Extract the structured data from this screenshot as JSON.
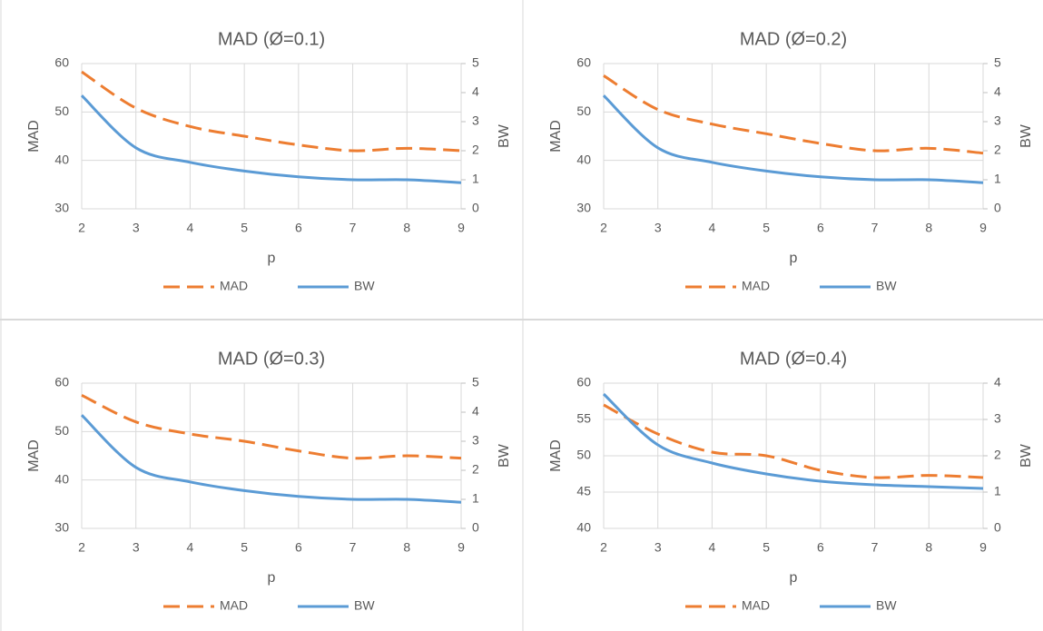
{
  "chart_data": [
    {
      "type": "line",
      "title": "MAD (Ø=0.1)",
      "xlabel": "p",
      "ylabel": "MAD",
      "y2label": "BW",
      "x": [
        2,
        3,
        4,
        5,
        6,
        7,
        8,
        9
      ],
      "xlim": [
        2,
        9
      ],
      "xticks": [
        2,
        3,
        4,
        5,
        6,
        7,
        8,
        9
      ],
      "ylim": [
        30,
        60
      ],
      "yticks": [
        30,
        40,
        50,
        60
      ],
      "y2lim": [
        0,
        5
      ],
      "y2ticks": [
        0,
        1,
        2,
        3,
        4,
        5
      ],
      "grid": true,
      "legend": "bottom",
      "series": [
        {
          "name": "MAD",
          "color": "#ed7d31",
          "dashed": true,
          "values": [
            58.3,
            50.8,
            47,
            45,
            43.2,
            42,
            42.5,
            42
          ]
        },
        {
          "name": "BW",
          "color": "#5b9bd5",
          "axis": "y2",
          "values": [
            3.9,
            2.1,
            1.6,
            1.3,
            1.1,
            1.0,
            1.0,
            0.9
          ]
        }
      ]
    },
    {
      "type": "line",
      "title": "MAD  (Ø=0.2)",
      "xlabel": "p",
      "ylabel": "MAD",
      "y2label": "BW",
      "x": [
        2,
        3,
        4,
        5,
        6,
        7,
        8,
        9
      ],
      "xlim": [
        2,
        9
      ],
      "xticks": [
        2,
        3,
        4,
        5,
        6,
        7,
        8,
        9
      ],
      "ylim": [
        30,
        60
      ],
      "yticks": [
        30,
        40,
        50,
        60
      ],
      "y2lim": [
        0,
        5
      ],
      "y2ticks": [
        0,
        1,
        2,
        3,
        4,
        5
      ],
      "grid": true,
      "legend": "bottom",
      "series": [
        {
          "name": "MAD",
          "color": "#ed7d31",
          "dashed": true,
          "values": [
            57.5,
            50.5,
            47.5,
            45.5,
            43.5,
            42,
            42.5,
            41.5
          ]
        },
        {
          "name": "BW",
          "color": "#5b9bd5",
          "axis": "y2",
          "values": [
            3.9,
            2.1,
            1.6,
            1.3,
            1.1,
            1.0,
            1.0,
            0.9
          ]
        }
      ]
    },
    {
      "type": "line",
      "title": "MAD  (Ø=0.3)",
      "xlabel": "p",
      "ylabel": "MAD",
      "y2label": "BW",
      "x": [
        2,
        3,
        4,
        5,
        6,
        7,
        8,
        9
      ],
      "xlim": [
        2,
        9
      ],
      "xticks": [
        2,
        3,
        4,
        5,
        6,
        7,
        8,
        9
      ],
      "ylim": [
        30,
        60
      ],
      "yticks": [
        30,
        40,
        50,
        60
      ],
      "y2lim": [
        0,
        5
      ],
      "y2ticks": [
        0,
        1,
        2,
        3,
        4,
        5
      ],
      "grid": true,
      "legend": "bottom",
      "series": [
        {
          "name": "MAD",
          "color": "#ed7d31",
          "dashed": true,
          "values": [
            57.5,
            52,
            49.5,
            48,
            46,
            44.5,
            45,
            44.5
          ]
        },
        {
          "name": "BW",
          "color": "#5b9bd5",
          "axis": "y2",
          "values": [
            3.9,
            2.1,
            1.6,
            1.3,
            1.1,
            1.0,
            1.0,
            0.9
          ]
        }
      ]
    },
    {
      "type": "line",
      "title": "MAD (Ø=0.4)",
      "xlabel": "p",
      "ylabel": "MAD",
      "y2label": "BW",
      "x": [
        2,
        3,
        4,
        5,
        6,
        7,
        8,
        9
      ],
      "xlim": [
        2,
        9
      ],
      "xticks": [
        2,
        3,
        4,
        5,
        6,
        7,
        8,
        9
      ],
      "ylim": [
        40,
        60
      ],
      "yticks": [
        40,
        45,
        50,
        55,
        60
      ],
      "y2lim": [
        0,
        4
      ],
      "y2ticks": [
        0,
        1,
        2,
        3,
        4
      ],
      "grid": true,
      "legend": "bottom",
      "series": [
        {
          "name": "MAD",
          "color": "#ed7d31",
          "dashed": true,
          "values": [
            57,
            53,
            50.5,
            50,
            48,
            47,
            47.3,
            47
          ]
        },
        {
          "name": "BW",
          "color": "#5b9bd5",
          "axis": "y2",
          "values": [
            3.7,
            2.3,
            1.8,
            1.5,
            1.3,
            1.2,
            1.15,
            1.1
          ]
        }
      ]
    }
  ]
}
